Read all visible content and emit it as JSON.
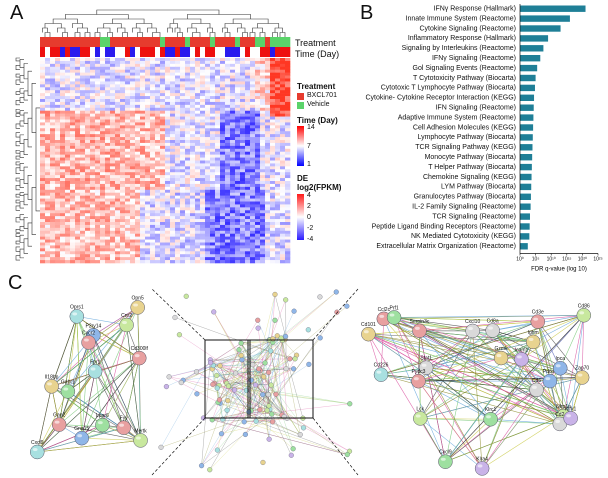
{
  "panels": {
    "a": "A",
    "b": "B",
    "c": "C"
  },
  "heatmap": {
    "row_labels": [
      "Treatment",
      "Time (Day)"
    ],
    "legend": {
      "treatment_title": "Treatment",
      "treatment_items": [
        {
          "label": "BXCL701",
          "color": "#e63b2e"
        },
        {
          "label": "Vehicle",
          "color": "#5ad36a"
        }
      ],
      "time_title": "Time (Day)",
      "time_ticks": [
        "14",
        "7",
        "1"
      ],
      "de_title_1": "DE",
      "de_title_2": "log2(FPKM)",
      "de_ticks": [
        "4",
        "2",
        "0",
        "-2",
        "-4"
      ]
    }
  },
  "chart_data": {
    "type": "bar",
    "orientation": "horizontal",
    "categories": [
      "IFNγ Response (Hallmark)",
      "Innate Immune System (Reactome)",
      "Cytokine Signaling (Reactome)",
      "Inflammatory Response (Hallmark)",
      "Signaling by Interleukins (Reactome)",
      "IFNγ Signaling (Reactome)",
      "Gol Signaling Events (Reactome)",
      "T Cytotoxicity Pathway (Biocarta)",
      "Cytotoxic T Lymphocyte Pathway (Biocarta)",
      "Cytokine- Cytokine Receptor Interaction  (KEGG)",
      "IFN Signaling (Reactome)",
      "Adaptive Immune System (Reactome)",
      "Cell Adhesion Molecules (KEGG)",
      "Lymphocyte Pathway (Biocarta)",
      "TCR Signaling Pathway (KEGG)",
      "Monocyte Pathway (Biocarta)",
      "T Helper Pathway (Biocarta)",
      "Chemokine Signaling (KEGG)",
      "LYM Pathway (Biocarta)",
      "Granulocytes Pathway (Biocarta)",
      "IL-2 Family Signaling (Reactome)",
      "TCR Signaling (Reactome)",
      "Peptide Ligand Binding Receptors (Reactome)",
      "NK Mediated Cytotoxicity (KEGG)",
      "Extracellular Matrix Organization (Reactome)"
    ],
    "values": [
      21,
      16,
      13,
      9,
      7.5,
      6.5,
      5.5,
      5,
      4.8,
      4.5,
      4.4,
      4.3,
      4.2,
      4.1,
      4.0,
      3.9,
      3.8,
      3.7,
      3.6,
      3.5,
      3.4,
      3.2,
      3.1,
      3.0,
      2.5
    ],
    "xlabel": "FDR q-value (log 10)",
    "xticks": [
      "10⁰",
      "10⁵",
      "10¹⁰",
      "10¹⁵",
      "10²⁰",
      "10²⁵"
    ],
    "xlim": [
      0,
      25
    ],
    "bar_color": "#1f7f97"
  },
  "network": {
    "left_labels": [
      "Il18bp",
      "Mertk",
      "Cd300lf",
      "Cxcl9",
      "Cnr2",
      "P2ry14",
      "Lpar6",
      "Gna15",
      "Gabr1",
      "Gan2",
      "Opn5",
      "Cxcr2",
      "Fpr1",
      "Oprs1",
      "Fyy"
    ],
    "right_labels": [
      "Stat1",
      "Nlrp1a",
      "Pydc3",
      "Ccl2c",
      "Serpin3c",
      "Cd86",
      "Cxcl10",
      "Pdcd1",
      "Klra4",
      "Cxcl9",
      "Cd2",
      "Prf1",
      "Klrc1",
      "Cd8a",
      "Icam1",
      "Klrk1",
      "Cd101",
      "Lck",
      "Cd226",
      "Ipca",
      "Zap70",
      "Cd3e",
      "Cd6",
      "Ighm",
      "Gzmk"
    ]
  }
}
